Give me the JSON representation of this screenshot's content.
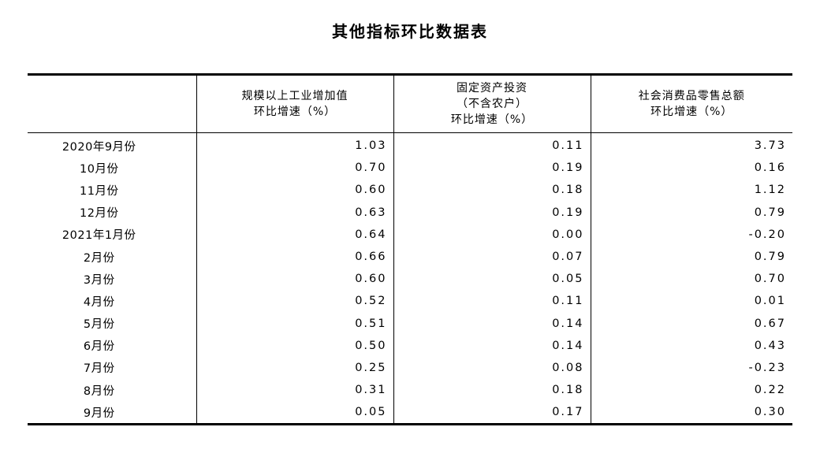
{
  "title": "其他指标环比数据表",
  "columns": [
    {
      "lines": [
        "规模以上工业增加值",
        "环比增速（%）"
      ]
    },
    {
      "lines": [
        "固定资产投资",
        "（不含农户）",
        "环比增速（%）"
      ]
    },
    {
      "lines": [
        "社会消费品零售总额",
        "环比增速（%）"
      ]
    }
  ],
  "rows": [
    {
      "period": "2020年9月份",
      "industry": "1.03",
      "investment": "0.11",
      "retail": "3.73"
    },
    {
      "period": "10月份",
      "industry": "0.70",
      "investment": "0.19",
      "retail": "0.16"
    },
    {
      "period": "11月份",
      "industry": "0.60",
      "investment": "0.18",
      "retail": "1.12"
    },
    {
      "period": "12月份",
      "industry": "0.63",
      "investment": "0.19",
      "retail": "0.79"
    },
    {
      "period": "2021年1月份",
      "industry": "0.64",
      "investment": "0.00",
      "retail": "-0.20"
    },
    {
      "period": "2月份",
      "industry": "0.66",
      "investment": "0.07",
      "retail": "0.79"
    },
    {
      "period": "3月份",
      "industry": "0.60",
      "investment": "0.05",
      "retail": "0.70"
    },
    {
      "period": "4月份",
      "industry": "0.52",
      "investment": "0.11",
      "retail": "0.01"
    },
    {
      "period": "5月份",
      "industry": "0.51",
      "investment": "0.14",
      "retail": "0.67"
    },
    {
      "period": "6月份",
      "industry": "0.50",
      "investment": "0.14",
      "retail": "0.43"
    },
    {
      "period": "7月份",
      "industry": "0.25",
      "investment": "0.08",
      "retail": "-0.23"
    },
    {
      "period": "8月份",
      "industry": "0.31",
      "investment": "0.18",
      "retail": "0.22"
    },
    {
      "period": "9月份",
      "industry": "0.05",
      "investment": "0.17",
      "retail": "0.30"
    }
  ]
}
